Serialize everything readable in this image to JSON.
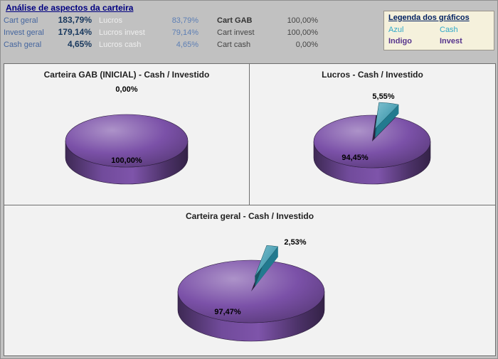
{
  "page": {
    "title": "Análise de aspectos da carteira"
  },
  "header": {
    "stats": [
      {
        "col1": {
          "label": "Cart geral",
          "value": "183,79%"
        },
        "col2": {
          "label": "Lucros",
          "value": "83,79%"
        },
        "col3": {
          "label": "Cart GAB",
          "value": "100,00%"
        }
      },
      {
        "col1": {
          "label": "Invest geral",
          "value": "179,14%"
        },
        "col2": {
          "label": "Lucros invest",
          "value": "79,14%"
        },
        "col3": {
          "label": "Cart invest",
          "value": "100,00%"
        }
      },
      {
        "col1": {
          "label": "Cash geral",
          "value": "4,65%"
        },
        "col2": {
          "label": "Lucros cash",
          "value": "4,65%"
        },
        "col3": {
          "label": "Cart cash",
          "value": "0,00%"
        }
      }
    ],
    "legend": {
      "title": "Legenda dos gráficos",
      "rows": [
        {
          "name": "Azul",
          "series": "Cash",
          "color": "#2FA8C8"
        },
        {
          "name": "Indigo",
          "series": "Invest",
          "color": "#55338C"
        }
      ]
    }
  },
  "colors": {
    "invest_purple": "#7B51A8",
    "cash_teal": "#2B99B3",
    "title_navy": "#000080",
    "legend_bg": "#F5F1DC"
  },
  "chart_data": [
    {
      "type": "pie",
      "title": "Carteira GAB (INICIAL) - Cash / Investido",
      "legend_position": "none",
      "slices": [
        {
          "label": "Cash",
          "value": 0.0,
          "display": "0,00%",
          "color": "#2B99B3"
        },
        {
          "label": "Invest",
          "value": 100.0,
          "display": "100,00%",
          "color": "#7B51A8"
        }
      ]
    },
    {
      "type": "pie",
      "title": "Lucros - Cash / Investido",
      "legend_position": "none",
      "slices": [
        {
          "label": "Cash",
          "value": 5.55,
          "display": "5,55%",
          "color": "#2B99B3"
        },
        {
          "label": "Invest",
          "value": 94.45,
          "display": "94,45%",
          "color": "#7B51A8"
        }
      ]
    },
    {
      "type": "pie",
      "title": "Carteira geral - Cash / Investido",
      "legend_position": "none",
      "slices": [
        {
          "label": "Cash",
          "value": 2.53,
          "display": "2,53%",
          "color": "#2B99B3"
        },
        {
          "label": "Invest",
          "value": 97.47,
          "display": "97,47%",
          "color": "#7B51A8"
        }
      ]
    }
  ]
}
